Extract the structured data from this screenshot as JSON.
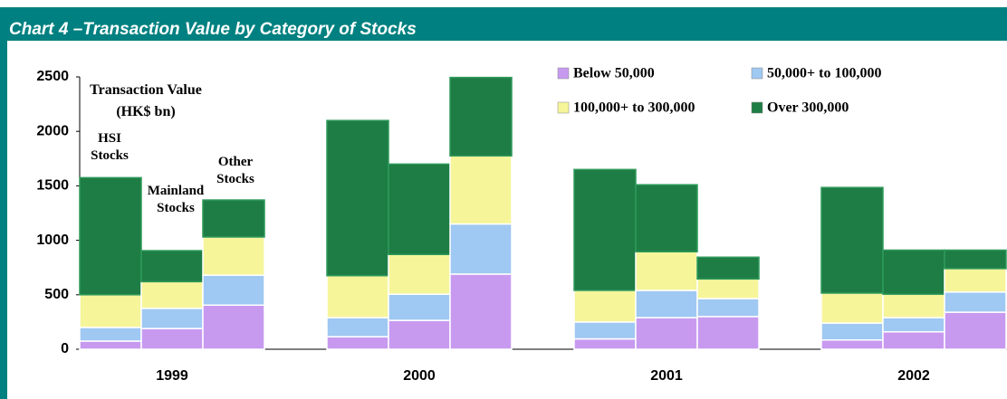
{
  "chart_data": {
    "type": "grouped-stacked-bar",
    "title": "Chart 4 –Transaction Value by Category of Stocks",
    "y_label": "Transaction Value (HK$ bn)",
    "groups": [
      "1999",
      "2000",
      "2001",
      "2002"
    ],
    "annotations": [
      "HSI Stocks",
      "Mainland Stocks",
      "Other Stocks"
    ],
    "series": [
      {
        "name": "Below 50,000",
        "color": "#c79af0",
        "values": [
          [
            75,
            190,
            405
          ],
          [
            115,
            265,
            690
          ],
          [
            95,
            290,
            300
          ],
          [
            85,
            160,
            340
          ]
        ]
      },
      {
        "name": "50,000+ to 100,000",
        "color": "#9fc8f2",
        "values": [
          [
            125,
            185,
            275
          ],
          [
            175,
            240,
            460
          ],
          [
            155,
            250,
            165
          ],
          [
            155,
            130,
            185
          ]
        ]
      },
      {
        "name": "100,000+ to 300,000",
        "color": "#f6f59a",
        "values": [
          [
            300,
            245,
            350
          ],
          [
            385,
            365,
            625
          ],
          [
            290,
            355,
            180
          ],
          [
            275,
            215,
            215
          ]
        ]
      },
      {
        "name": "Over 300,000",
        "color": "#1e7d45",
        "values": [
          [
            1075,
            285,
            340
          ],
          [
            1425,
            830,
            720
          ],
          [
            1110,
            615,
            200
          ],
          [
            970,
            405,
            170
          ]
        ]
      }
    ],
    "ylim": [
      0,
      2500
    ],
    "yticks": [
      0,
      500,
      1000,
      1500,
      2000,
      2500
    ],
    "legend": "top-right",
    "grid": false
  }
}
